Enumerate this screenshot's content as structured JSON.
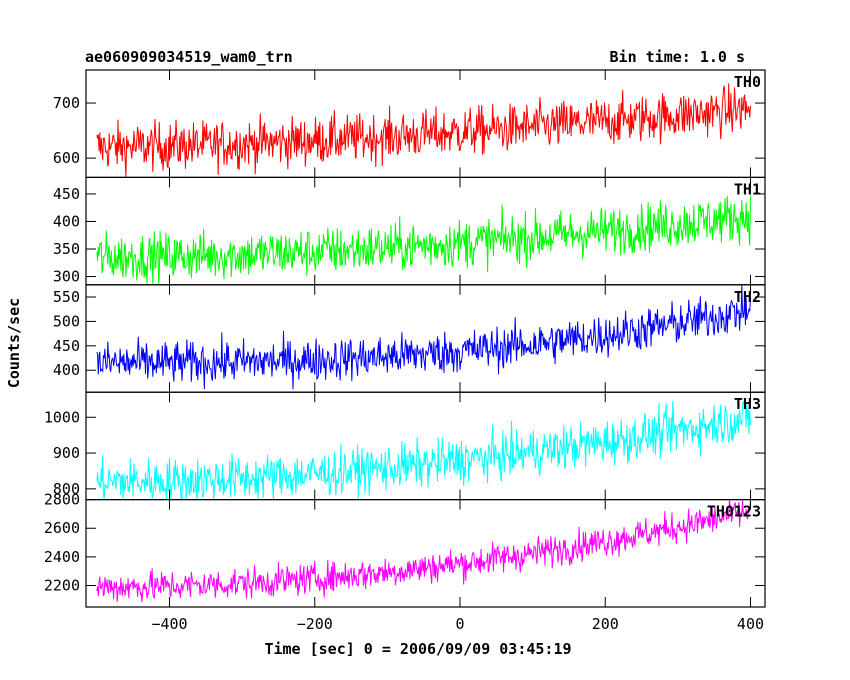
{
  "chart_data": {
    "type": "line",
    "title": "ae060909034519_wam0_trn",
    "subtitle": "Bin time: 1.0 s",
    "xlabel": "Time [sec] 0 = 2006/09/09 03:45:19",
    "ylabel": "Counts/sec",
    "xlim": [
      -515,
      420
    ],
    "x_range": [
      -500,
      400
    ],
    "x_ticks": [
      -400,
      -200,
      0,
      200,
      400
    ],
    "x_tick_labels": [
      "−400",
      "−200",
      "0",
      "200",
      "400"
    ],
    "grid": false,
    "panels": [
      {
        "name": "TH0",
        "color": "#ff0000",
        "ylim": [
          565,
          760
        ],
        "y_ticks": [
          600,
          700
        ],
        "y_tick_labels": [
          "600",
          "700"
        ],
        "start": 620,
        "end": 690,
        "curve": 1.6,
        "noise": 22
      },
      {
        "name": "TH1",
        "color": "#00ff00",
        "ylim": [
          285,
          480
        ],
        "y_ticks": [
          300,
          350,
          400,
          450
        ],
        "y_tick_labels": [
          "300",
          "350",
          "400",
          "450"
        ],
        "start": 335,
        "end": 410,
        "curve": 1.8,
        "noise": 22
      },
      {
        "name": "TH2",
        "color": "#0000ff",
        "ylim": [
          355,
          575
        ],
        "y_ticks": [
          400,
          450,
          500,
          550
        ],
        "y_tick_labels": [
          "400",
          "450",
          "500",
          "550"
        ],
        "start": 415,
        "end": 525,
        "curve": 2.6,
        "noise": 22
      },
      {
        "name": "TH3",
        "color": "#00ffff",
        "ylim": [
          770,
          1070
        ],
        "y_ticks": [
          800,
          900,
          1000
        ],
        "y_tick_labels": [
          "800",
          "900",
          "1000"
        ],
        "start": 820,
        "end": 1000,
        "curve": 1.9,
        "noise": 32
      },
      {
        "name": "TH0123",
        "color": "#ff00ff",
        "ylim": [
          2050,
          2800
        ],
        "y_ticks": [
          2200,
          2400,
          2600,
          2800
        ],
        "y_tick_labels": [
          "2200",
          "2400",
          "2600",
          "2800"
        ],
        "start": 2190,
        "end": 2720,
        "curve": 2.0,
        "noise": 55
      }
    ]
  }
}
